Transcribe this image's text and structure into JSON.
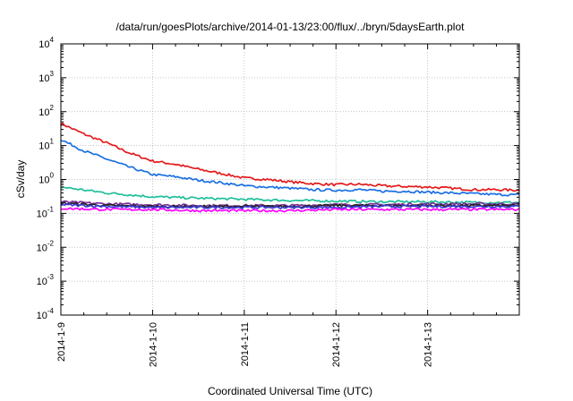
{
  "chart_data": {
    "type": "line",
    "title": "/data/run/goesPlots/archive/2014-01-13/23:00/flux/../bryn/5daysEarth.plot",
    "xlabel": "Coordinated Universal Time (UTC)",
    "ylabel": "cSv/day",
    "y_scale": "log",
    "ylim": [
      0.0001,
      10000
    ],
    "y_ticks": [
      {
        "base": "10",
        "exp": "-4",
        "value": 0.0001
      },
      {
        "base": "10",
        "exp": "-3",
        "value": 0.001
      },
      {
        "base": "10",
        "exp": "-2",
        "value": 0.01
      },
      {
        "base": "10",
        "exp": "-1",
        "value": 0.1
      },
      {
        "base": "10",
        "exp": "0",
        "value": 1
      },
      {
        "base": "10",
        "exp": "1",
        "value": 10
      },
      {
        "base": "10",
        "exp": "2",
        "value": 100
      },
      {
        "base": "10",
        "exp": "3",
        "value": 1000
      },
      {
        "base": "10",
        "exp": "4",
        "value": 10000
      }
    ],
    "x_ticks": [
      "2014-1-9",
      "2014-1-10",
      "2014-1-11",
      "2014-1-12",
      "2014-1-13"
    ],
    "xlim": [
      "2014-01-09T00:00",
      "2014-01-13T23:59"
    ],
    "grid": true,
    "series": [
      {
        "color": "#e41a1c",
        "x": [
          "2014-01-09T00:00",
          "2014-01-09T06:00",
          "2014-01-09T12:00",
          "2014-01-09T18:00",
          "2014-01-10T00:00",
          "2014-01-10T06:00",
          "2014-01-10T12:00",
          "2014-01-10T18:00",
          "2014-01-11T00:00",
          "2014-01-11T06:00",
          "2014-01-11T12:00",
          "2014-01-11T18:00",
          "2014-01-12T00:00",
          "2014-01-12T06:00",
          "2014-01-12T12:00",
          "2014-01-12T18:00",
          "2014-01-13T00:00",
          "2014-01-13T06:00",
          "2014-01-13T12:00",
          "2014-01-13T18:00",
          "2014-01-13T23:59"
        ],
        "y": [
          45,
          22,
          12,
          6,
          3.5,
          2.8,
          2.0,
          1.5,
          1.1,
          1.0,
          0.85,
          0.75,
          0.7,
          0.72,
          0.65,
          0.62,
          0.6,
          0.55,
          0.5,
          0.5,
          0.48
        ]
      },
      {
        "color": "#1a6fe4",
        "x": [
          "2014-01-09T00:00",
          "2014-01-09T06:00",
          "2014-01-09T12:00",
          "2014-01-09T18:00",
          "2014-01-10T00:00",
          "2014-01-10T06:00",
          "2014-01-10T12:00",
          "2014-01-10T18:00",
          "2014-01-11T00:00",
          "2014-01-11T06:00",
          "2014-01-11T12:00",
          "2014-01-11T18:00",
          "2014-01-12T00:00",
          "2014-01-12T06:00",
          "2014-01-12T12:00",
          "2014-01-12T18:00",
          "2014-01-13T00:00",
          "2014-01-13T06:00",
          "2014-01-13T12:00",
          "2014-01-13T18:00",
          "2014-01-13T23:59"
        ],
        "y": [
          15,
          7,
          4,
          2.3,
          1.4,
          1.2,
          0.95,
          0.8,
          0.65,
          0.6,
          0.55,
          0.5,
          0.48,
          0.5,
          0.45,
          0.45,
          0.42,
          0.4,
          0.38,
          0.36,
          0.35
        ]
      },
      {
        "color": "#1fbf9a",
        "x": [
          "2014-01-09T00:00",
          "2014-01-09T12:00",
          "2014-01-10T00:00",
          "2014-01-10T12:00",
          "2014-01-11T00:00",
          "2014-01-11T12:00",
          "2014-01-12T00:00",
          "2014-01-12T12:00",
          "2014-01-13T00:00",
          "2014-01-13T12:00",
          "2014-01-13T23:59"
        ],
        "y": [
          0.6,
          0.4,
          0.31,
          0.28,
          0.26,
          0.24,
          0.23,
          0.22,
          0.22,
          0.21,
          0.21
        ]
      },
      {
        "color": "#7b3294",
        "x": [
          "2014-01-09T00:00",
          "2014-01-09T12:00",
          "2014-01-10T00:00",
          "2014-01-10T12:00",
          "2014-01-11T00:00",
          "2014-01-11T12:00",
          "2014-01-12T00:00",
          "2014-01-12T12:00",
          "2014-01-13T00:00",
          "2014-01-13T12:00",
          "2014-01-13T23:59"
        ],
        "y": [
          0.22,
          0.19,
          0.18,
          0.17,
          0.17,
          0.17,
          0.18,
          0.18,
          0.19,
          0.19,
          0.19
        ]
      },
      {
        "color": "#222222",
        "x": [
          "2014-01-09T00:00",
          "2014-01-09T12:00",
          "2014-01-10T00:00",
          "2014-01-10T12:00",
          "2014-01-11T00:00",
          "2014-01-11T12:00",
          "2014-01-12T00:00",
          "2014-01-12T12:00",
          "2014-01-13T00:00",
          "2014-01-13T12:00",
          "2014-01-13T23:59"
        ],
        "y": [
          0.2,
          0.17,
          0.16,
          0.16,
          0.16,
          0.16,
          0.17,
          0.17,
          0.17,
          0.17,
          0.17
        ]
      },
      {
        "color": "#3b3bd6",
        "x": [
          "2014-01-09T00:00",
          "2014-01-09T12:00",
          "2014-01-10T00:00",
          "2014-01-10T12:00",
          "2014-01-11T00:00",
          "2014-01-11T12:00",
          "2014-01-12T00:00",
          "2014-01-12T12:00",
          "2014-01-13T00:00",
          "2014-01-13T12:00",
          "2014-01-13T23:59"
        ],
        "y": [
          0.18,
          0.16,
          0.15,
          0.15,
          0.15,
          0.15,
          0.15,
          0.16,
          0.16,
          0.16,
          0.16
        ]
      },
      {
        "color": "#ff00ff",
        "x": [
          "2014-01-09T00:00",
          "2014-01-09T12:00",
          "2014-01-10T00:00",
          "2014-01-10T12:00",
          "2014-01-11T00:00",
          "2014-01-11T12:00",
          "2014-01-12T00:00",
          "2014-01-12T12:00",
          "2014-01-13T00:00",
          "2014-01-13T12:00",
          "2014-01-13T23:59"
        ],
        "y": [
          0.14,
          0.13,
          0.13,
          0.12,
          0.12,
          0.12,
          0.13,
          0.13,
          0.13,
          0.13,
          0.13
        ]
      }
    ]
  }
}
